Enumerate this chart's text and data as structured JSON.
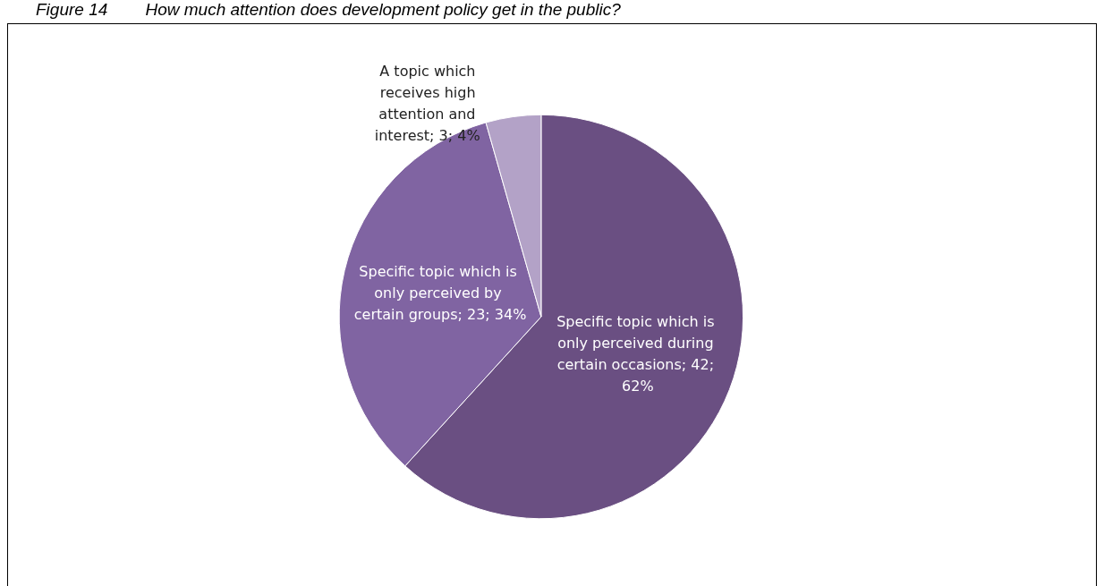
{
  "chart_data": {
    "type": "pie",
    "title": "Figure 14        How much attention does development policy get in the public?",
    "categories": [
      "Specific topic which is only perceived during certain occasions",
      "Specific topic which is only perceived by certain groups",
      "A topic which receives high attention and interest"
    ],
    "values": [
      42,
      23,
      3
    ],
    "value_labels": [
      "42; 62%",
      "23; 34%",
      "3; 4%"
    ],
    "colors": [
      "#6a4f82",
      "#8064a2",
      "#b3a2c7"
    ],
    "legend": false
  }
}
